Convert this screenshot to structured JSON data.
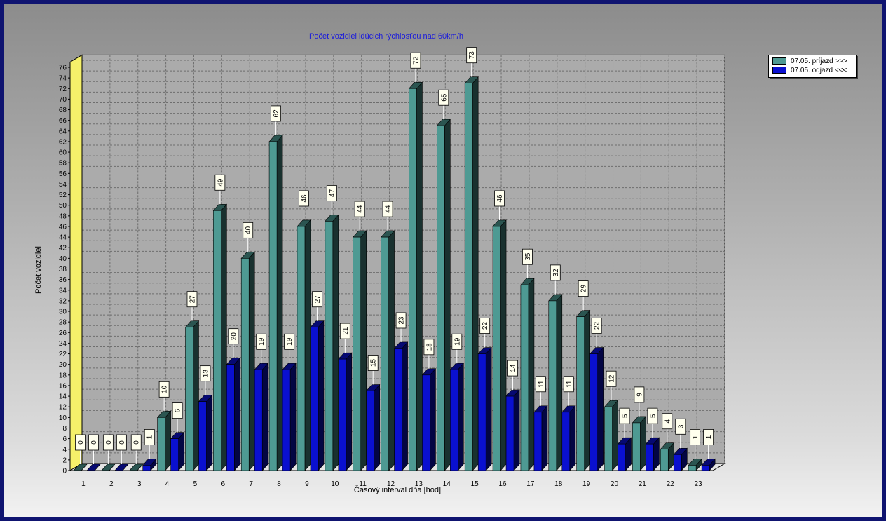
{
  "chart_data": {
    "type": "bar",
    "title": "Počet vozidiel idúcich rýchlosťou nad 60km/h",
    "xlabel": "Časový interval dňa [hod]",
    "ylabel": "Počet vozidiel",
    "ylim": [
      0,
      77
    ],
    "y_ticks": [
      0,
      2,
      4,
      6,
      8,
      10,
      12,
      14,
      16,
      18,
      20,
      22,
      24,
      26,
      28,
      30,
      32,
      34,
      36,
      38,
      40,
      42,
      44,
      46,
      48,
      50,
      52,
      54,
      56,
      58,
      60,
      62,
      64,
      66,
      68,
      70,
      72,
      74,
      76
    ],
    "categories": [
      "1",
      "2",
      "3",
      "4",
      "5",
      "6",
      "7",
      "8",
      "9",
      "10",
      "11",
      "12",
      "13",
      "14",
      "15",
      "16",
      "17",
      "18",
      "19",
      "20",
      "21",
      "22",
      "23"
    ],
    "series": [
      {
        "name": "07.05.  príjazd >>>",
        "color": "#4e9a93",
        "values": [
          0,
          0,
          0,
          10,
          27,
          49,
          40,
          62,
          46,
          47,
          44,
          44,
          72,
          65,
          73,
          46,
          35,
          32,
          29,
          12,
          9,
          4,
          1
        ]
      },
      {
        "name": "07.05.  odjazd <<<",
        "color": "#0a10d0",
        "values": [
          0,
          0,
          1,
          6,
          13,
          20,
          19,
          19,
          27,
          21,
          15,
          23,
          18,
          19,
          22,
          14,
          11,
          11,
          22,
          5,
          5,
          3,
          1
        ]
      }
    ],
    "grid": true,
    "legend_position": "top-right"
  }
}
